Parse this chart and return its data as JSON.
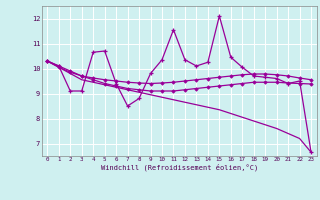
{
  "xlabel": "Windchill (Refroidissement éolien,°C)",
  "background_color": "#cff0f0",
  "grid_color": "#ffffff",
  "line_color": "#990099",
  "ylim": [
    6.5,
    12.5
  ],
  "yticks": [
    7,
    8,
    9,
    10,
    11,
    12
  ],
  "xticks": [
    0,
    1,
    2,
    3,
    4,
    5,
    6,
    7,
    8,
    9,
    10,
    11,
    12,
    13,
    14,
    15,
    16,
    17,
    18,
    19,
    20,
    21,
    22,
    23
  ],
  "line1_zigzag": [
    10.3,
    10.1,
    9.1,
    9.1,
    10.65,
    10.7,
    9.4,
    8.5,
    8.8,
    9.8,
    10.35,
    11.55,
    10.35,
    10.1,
    10.25,
    12.1,
    10.45,
    10.05,
    9.7,
    9.65,
    9.6,
    9.4,
    9.5,
    6.65
  ],
  "line2_straight": [
    10.3,
    10.1,
    9.9,
    9.7,
    9.55,
    9.4,
    9.3,
    9.2,
    9.15,
    9.1,
    9.1,
    9.1,
    9.15,
    9.2,
    9.25,
    9.3,
    9.35,
    9.4,
    9.45,
    9.45,
    9.45,
    9.42,
    9.4,
    9.38
  ],
  "line3_smooth": [
    10.3,
    10.05,
    9.85,
    9.7,
    9.62,
    9.55,
    9.5,
    9.45,
    9.42,
    9.4,
    9.42,
    9.45,
    9.5,
    9.55,
    9.6,
    9.65,
    9.7,
    9.75,
    9.78,
    9.78,
    9.75,
    9.7,
    9.62,
    9.55
  ],
  "line4_diagonal": [
    10.3,
    10.05,
    9.8,
    9.55,
    9.45,
    9.35,
    9.25,
    9.15,
    9.05,
    8.95,
    8.85,
    8.75,
    8.65,
    8.55,
    8.45,
    8.35,
    8.2,
    8.05,
    7.9,
    7.75,
    7.6,
    7.4,
    7.2,
    6.65
  ]
}
